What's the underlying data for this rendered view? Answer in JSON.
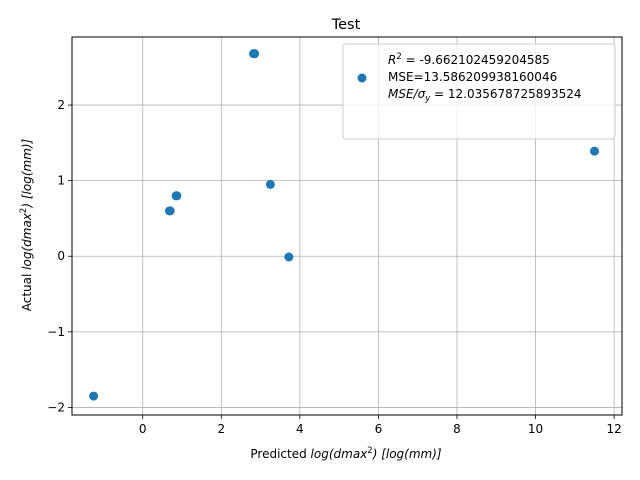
{
  "chart_data": {
    "type": "scatter",
    "title": "Test",
    "xlabel": {
      "prefix": "Predicted ",
      "italic": "log(dmax",
      "sup": "2",
      "mid": ") ",
      "unit": "[log(mm)]"
    },
    "ylabel": {
      "prefix": "Actual ",
      "italic": "log(dmax",
      "sup": "2",
      "mid": ") ",
      "unit": "[log(mm)]"
    },
    "xlim": [
      -1.8,
      12.2
    ],
    "ylim": [
      -2.1,
      2.9
    ],
    "xticks": [
      0,
      2,
      4,
      6,
      8,
      10,
      12
    ],
    "yticks": [
      -2,
      -1,
      0,
      1,
      2
    ],
    "xtick_labels": [
      "0",
      "2",
      "4",
      "6",
      "8",
      "10",
      "12"
    ],
    "ytick_labels": [
      "−2",
      "−1",
      "0",
      "1",
      "2"
    ],
    "grid": true,
    "legend_position": "top-right",
    "series": [
      {
        "color": "#1f77b4",
        "points": [
          {
            "x": -1.25,
            "y": -1.85
          },
          {
            "x": 0.68,
            "y": 0.6
          },
          {
            "x": 0.7,
            "y": 0.6
          },
          {
            "x": 0.85,
            "y": 0.8
          },
          {
            "x": 0.87,
            "y": 0.8
          },
          {
            "x": 2.82,
            "y": 2.68
          },
          {
            "x": 2.85,
            "y": 2.68
          },
          {
            "x": 3.25,
            "y": 0.95
          },
          {
            "x": 3.72,
            "y": -0.01
          },
          {
            "x": 11.5,
            "y": 1.39
          }
        ]
      }
    ],
    "legend": {
      "line1_math": "R",
      "line1_sup": "2",
      "line1_rest": " = -9.662102459204585",
      "line2": "MSE=13.586209938160046",
      "line3_math": "MSE/σ",
      "line3_sub": "y",
      "line3_rest": " = 12.035678725893524"
    }
  }
}
